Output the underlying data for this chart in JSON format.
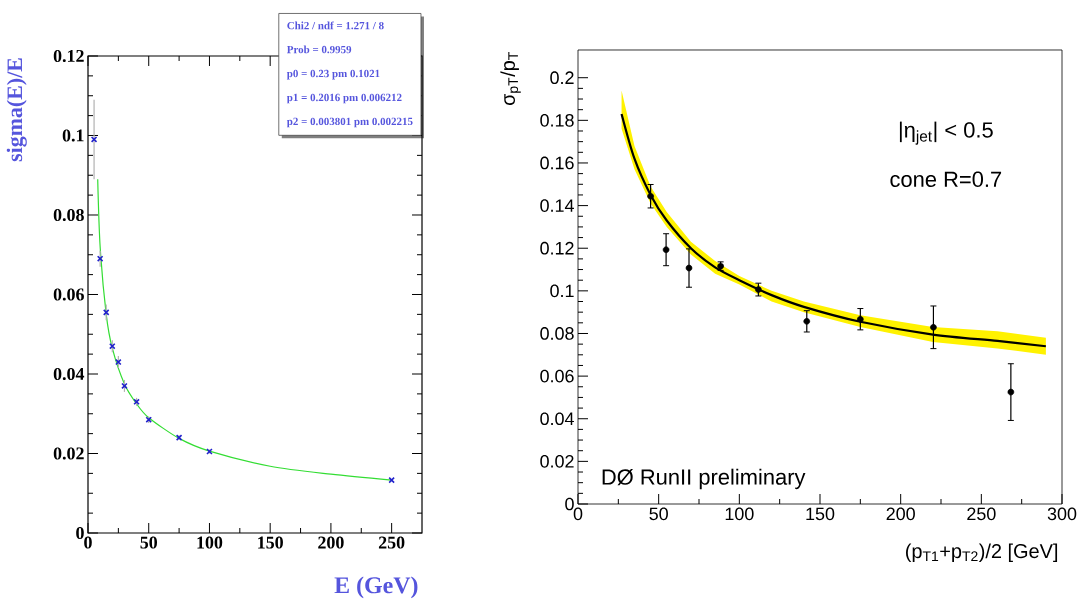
{
  "chart_data": [
    {
      "type": "scatter",
      "xlabel": "E (GeV)",
      "ylabel": "sigma(E)/E",
      "xlim": [
        0,
        275
      ],
      "ylim": [
        0,
        0.12
      ],
      "xticks": [
        0,
        50,
        100,
        150,
        200,
        250
      ],
      "yticks": [
        0,
        0.02,
        0.04,
        0.06,
        0.08,
        0.1,
        0.12
      ],
      "annotations": [
        "Chi2 / ndf = 1.271 / 8",
        "Prob  = 0.9959",
        "p0      =  0.23 pm 0.1021",
        "p1      = 0.2016 pm 0.006212",
        "p2      = 0.003801 pm 0.002215"
      ],
      "series": [
        {
          "type": "line",
          "color": "#33dd33",
          "marker": "none",
          "x": [
            8,
            10,
            15,
            20,
            30,
            40,
            50,
            75,
            100,
            150,
            200,
            250
          ],
          "values": [
            0.089,
            0.072,
            0.055,
            0.0465,
            0.0375,
            0.0325,
            0.029,
            0.0238,
            0.0206,
            0.0168,
            0.0148,
            0.0133
          ]
        },
        {
          "color": "#2222cc",
          "marker": "cross",
          "x": [
            5,
            10,
            15,
            20,
            25,
            30,
            40,
            50,
            75,
            100,
            250
          ],
          "values": [
            0.099,
            0.069,
            0.0555,
            0.047,
            0.043,
            0.037,
            0.033,
            0.0285,
            0.024,
            0.0205,
            0.0133
          ],
          "errors": [
            0.01,
            0.002,
            0.002,
            0.0015,
            0.0015,
            0.0015,
            0.001,
            0.0008,
            0.0006,
            0.0005,
            null
          ]
        }
      ]
    },
    {
      "type": "scatter",
      "xlabel": "(p$_{T1}$+p$_{T2}$)/2 [GeV]",
      "ylabel": "σ$_{pT}$/p$_{T}$",
      "xlim": [
        0,
        300
      ],
      "ylim": [
        0,
        0.213
      ],
      "xticks": [
        0,
        50,
        100,
        150,
        200,
        250,
        300
      ],
      "yticks": [
        0,
        0.02,
        0.04,
        0.06,
        0.08,
        0.1,
        0.12,
        0.14,
        0.16,
        0.18,
        0.2
      ],
      "annotations": [
        "|η$_{jet}$| < 0.5",
        "cone R=0.7",
        "DØ RunII preliminary"
      ],
      "series": [
        {
          "type": "line",
          "color": "#000000",
          "marker": "none",
          "x": [
            27,
            35,
            45,
            55,
            70,
            85,
            100,
            120,
            140,
            175,
            220,
            260,
            290
          ],
          "values": [
            0.183,
            0.162,
            0.145,
            0.133,
            0.12,
            0.111,
            0.105,
            0.098,
            0.0925,
            0.0855,
            0.0795,
            0.0765,
            0.074
          ],
          "lower": [
            0.176,
            0.157,
            0.141,
            0.13,
            0.117,
            0.108,
            0.103,
            0.095,
            0.09,
            0.083,
            0.076,
            0.073,
            0.07
          ],
          "upper": [
            0.194,
            0.168,
            0.149,
            0.137,
            0.123,
            0.114,
            0.107,
            0.1,
            0.095,
            0.0885,
            0.083,
            0.081,
            0.078
          ]
        },
        {
          "color": "#000000",
          "marker": "circle",
          "x": [
            45,
            54.6,
            68.8,
            88.4,
            111.8,
            141.8,
            175,
            220.3,
            268.3
          ],
          "values": [
            0.1444,
            0.1193,
            0.1107,
            0.1116,
            0.1006,
            0.0857,
            0.0867,
            0.0829,
            0.0525
          ],
          "errors": [
            0.0055,
            0.0075,
            0.009,
            0.002,
            0.003,
            0.005,
            0.005,
            0.01,
            0.0133
          ]
        }
      ]
    }
  ]
}
